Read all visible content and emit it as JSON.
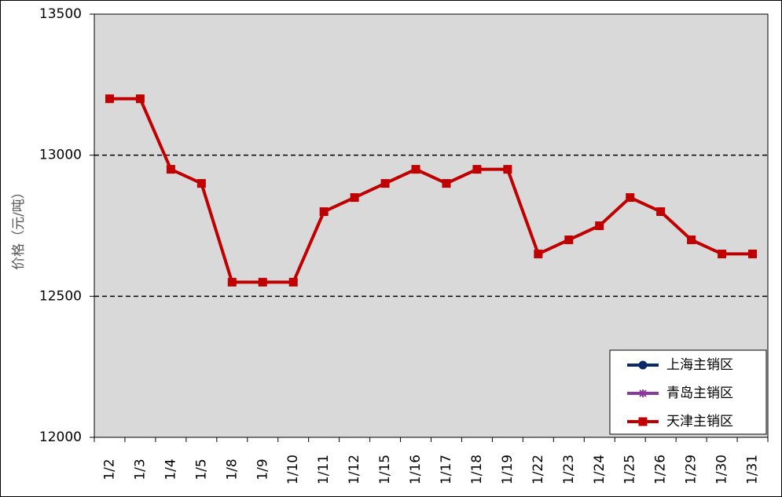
{
  "chart_data": {
    "type": "line",
    "y_label": "价格（元/吨）",
    "categories": [
      "1/2",
      "1/3",
      "1/4",
      "1/5",
      "1/8",
      "1/9",
      "1/10",
      "1/11",
      "1/12",
      "1/15",
      "1/16",
      "1/17",
      "1/18",
      "1/19",
      "1/22",
      "1/23",
      "1/24",
      "1/25",
      "1/26",
      "1/29",
      "1/30",
      "1/31"
    ],
    "series": [
      {
        "name": "上海主销区",
        "color": "#0b2a6b",
        "marker": "circle",
        "values": [
          null,
          null,
          null,
          null,
          null,
          null,
          null,
          null,
          null,
          null,
          null,
          null,
          null,
          null,
          null,
          null,
          null,
          null,
          null,
          null,
          null,
          null
        ]
      },
      {
        "name": "青岛主销区",
        "color": "#8a3a9a",
        "marker": "asterisk",
        "values": [
          null,
          null,
          null,
          null,
          null,
          null,
          null,
          null,
          null,
          null,
          null,
          null,
          null,
          null,
          null,
          null,
          null,
          null,
          null,
          null,
          null,
          null
        ]
      },
      {
        "name": "天津主销区",
        "color": "#c00000",
        "marker": "square",
        "values": [
          13200,
          13200,
          12950,
          12900,
          12550,
          12550,
          12550,
          12800,
          12850,
          12900,
          12950,
          12900,
          12950,
          12950,
          12650,
          12700,
          12750,
          12850,
          12800,
          12700,
          12650,
          12650
        ]
      }
    ],
    "ylim": [
      12000,
      13500
    ],
    "yticks": [
      12000,
      12500,
      13000,
      13500
    ],
    "grid": true,
    "legend": "bottom-right"
  }
}
